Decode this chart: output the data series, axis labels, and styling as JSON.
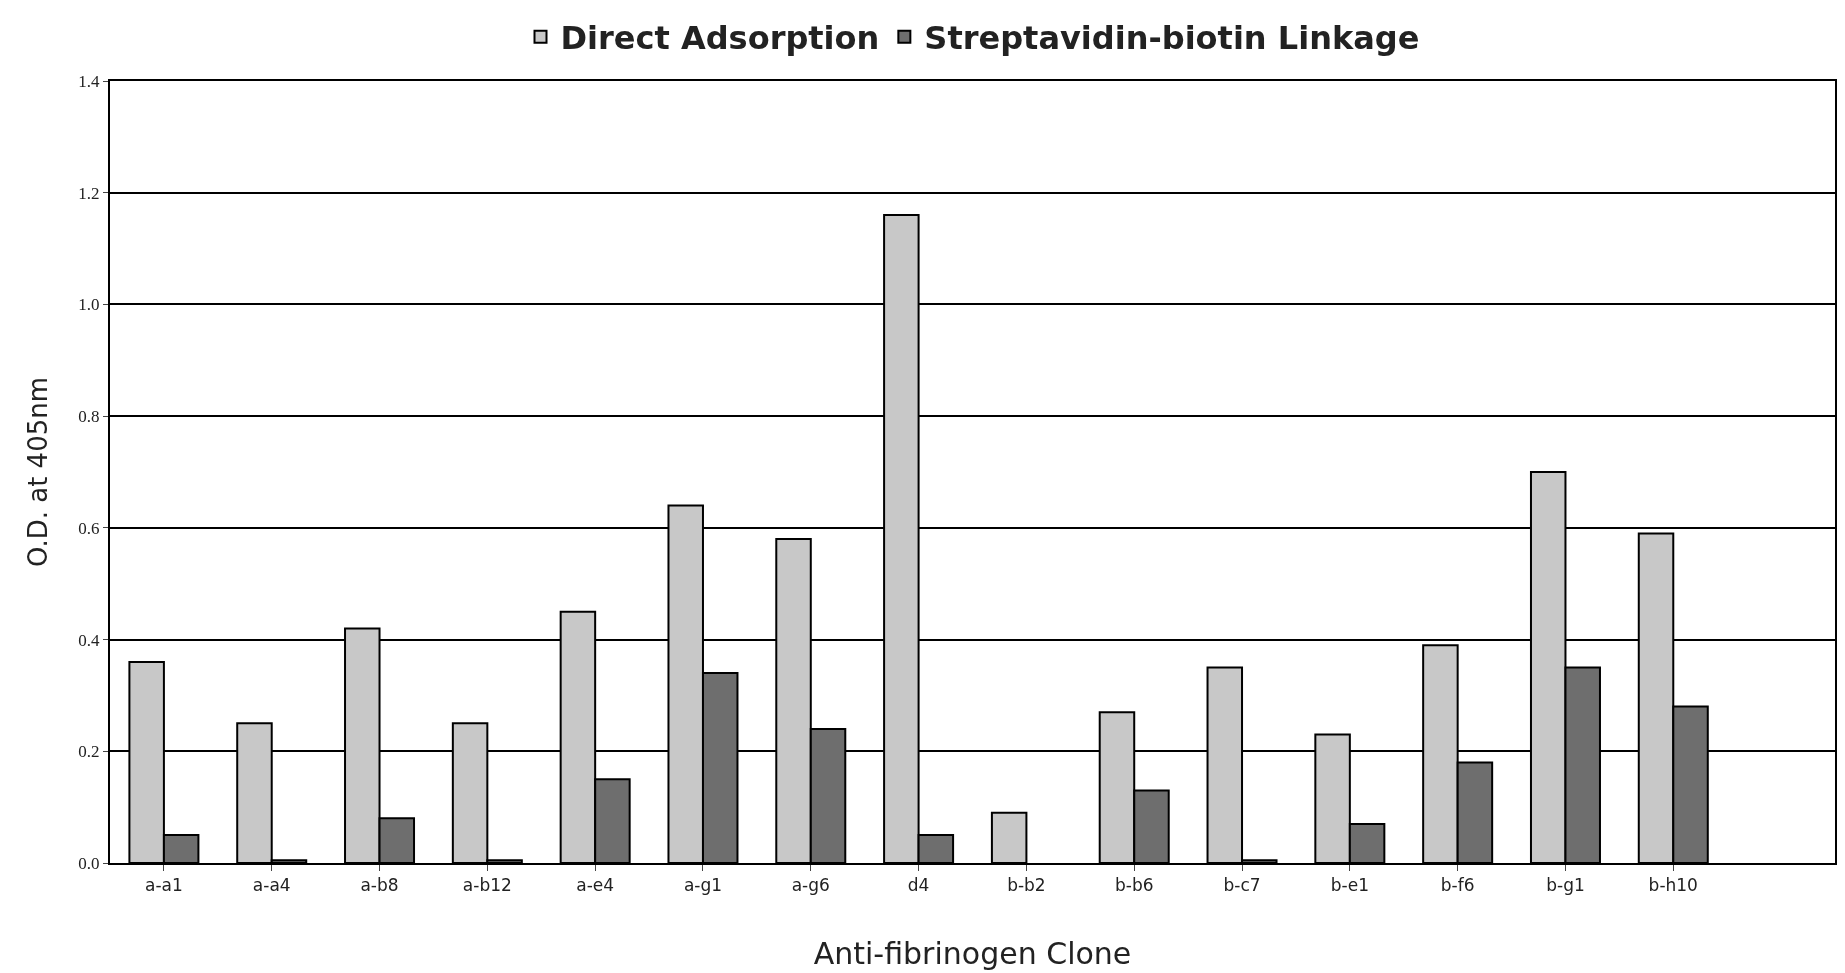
{
  "chart_data": {
    "type": "bar",
    "xlabel": "Anti-fibrinogen Clone",
    "ylabel": "O.D. at 405nm",
    "categories": [
      "a-a1",
      "a-a4",
      "a-b8",
      "a-b12",
      "a-e4",
      "a-g1",
      "a-g6",
      "d4",
      "b-b2",
      "b-b6",
      "b-c7",
      "b-e1",
      "b-f6",
      "b-g1",
      "b-h10",
      null
    ],
    "series": [
      {
        "name": "Direct Adsorption",
        "color": "#c8c8c8",
        "values": [
          0.36,
          0.25,
          0.42,
          0.25,
          0.45,
          0.64,
          0.58,
          1.16,
          0.09,
          0.27,
          0.35,
          0.23,
          0.39,
          0.7,
          0.59,
          null
        ]
      },
      {
        "name": "Streptavidin-biotin Linkage",
        "color": "#6e6e6e",
        "values": [
          0.05,
          0.005,
          0.08,
          0.005,
          0.15,
          0.34,
          0.24,
          0.05,
          null,
          0.13,
          0.005,
          0.07,
          0.18,
          0.35,
          0.28,
          null
        ]
      }
    ],
    "ylim": [
      0,
      1.4
    ],
    "yticks": [
      {
        "value": 0,
        "label": "0.0"
      },
      0.2,
      0.4,
      0.6,
      0.8,
      {
        "value": 1,
        "label": "1.0"
      },
      1.2,
      1.4
    ],
    "grid": "y",
    "legend": "top"
  }
}
